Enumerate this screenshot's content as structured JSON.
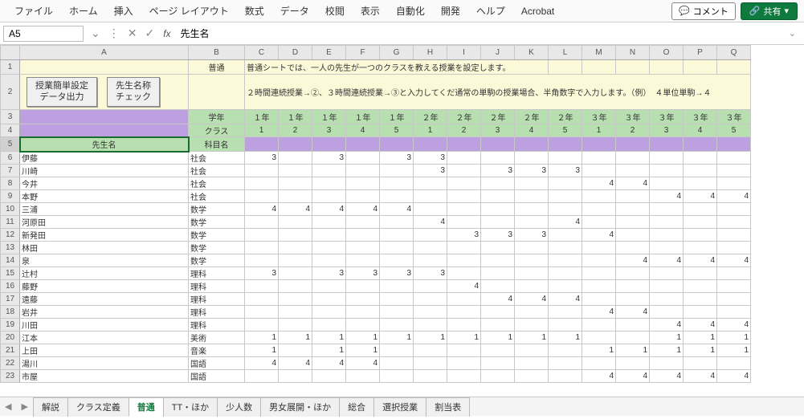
{
  "menu": {
    "file": "ファイル",
    "home": "ホーム",
    "insert": "挿入",
    "pageLayout": "ページ レイアウト",
    "formulas": "数式",
    "data": "データ",
    "review": "校閲",
    "view": "表示",
    "automate": "自動化",
    "developer": "開発",
    "help": "ヘルプ",
    "acrobat": "Acrobat",
    "comment": "コメント",
    "share": "共有"
  },
  "formulaBar": {
    "cellRef": "A5",
    "value": "先生名"
  },
  "columns": [
    "A",
    "B",
    "C",
    "D",
    "E",
    "F",
    "G",
    "H",
    "I",
    "J",
    "K",
    "L",
    "M",
    "N",
    "O",
    "P",
    "Q"
  ],
  "header": {
    "b1": "普通",
    "help1": "普通シートでは、一人の先生が一つのクラスを教える授業を設定します。",
    "help2": "２時間連続授業→②、３時間連続授業→③と入力してくだ通常の単駒の授業場合、半角数字で入力します。（例）　４単位単駒→４",
    "btn1a": "授業簡単設定",
    "btn1b": "データ出力",
    "btn2a": "先生名称",
    "btn2b": "チェック",
    "gradeLabel": "学年",
    "classLabel": "クラス",
    "teacherLabel": "先生名",
    "subjectLabel": "科目名",
    "grades": [
      "１年",
      "１年",
      "１年",
      "１年",
      "１年",
      "２年",
      "２年",
      "２年",
      "２年",
      "２年",
      "３年",
      "３年",
      "３年",
      "３年",
      "３年"
    ],
    "classes": [
      "1",
      "2",
      "3",
      "4",
      "5",
      "1",
      "2",
      "3",
      "4",
      "5",
      "1",
      "2",
      "3",
      "4",
      "5"
    ]
  },
  "rows": [
    {
      "n": 6,
      "name": "伊藤",
      "subj": "社会",
      "v": [
        "3",
        "",
        "3",
        "",
        "3",
        "3",
        "",
        "",
        "",
        "",
        "",
        "",
        "",
        "",
        ""
      ]
    },
    {
      "n": 7,
      "name": "川崎",
      "subj": "社会",
      "v": [
        "",
        "",
        "",
        "",
        "",
        "3",
        "",
        "3",
        "3",
        "3",
        "",
        "",
        "",
        "",
        ""
      ]
    },
    {
      "n": 8,
      "name": "今井",
      "subj": "社会",
      "v": [
        "",
        "",
        "",
        "",
        "",
        "",
        "",
        "",
        "",
        "",
        "4",
        "4",
        "",
        "",
        ""
      ]
    },
    {
      "n": 9,
      "name": "本野",
      "subj": "社会",
      "v": [
        "",
        "",
        "",
        "",
        "",
        "",
        "",
        "",
        "",
        "",
        "",
        "",
        "4",
        "4",
        "4"
      ]
    },
    {
      "n": 10,
      "name": "三浦",
      "subj": "数学",
      "v": [
        "4",
        "4",
        "4",
        "4",
        "4",
        "",
        "",
        "",
        "",
        "",
        "",
        "",
        "",
        "",
        ""
      ]
    },
    {
      "n": 11,
      "name": "河原田",
      "subj": "数学",
      "v": [
        "",
        "",
        "",
        "",
        "",
        "4",
        "",
        "",
        "",
        "4",
        "",
        "",
        "",
        "",
        ""
      ]
    },
    {
      "n": 12,
      "name": "新発田",
      "subj": "数学",
      "v": [
        "",
        "",
        "",
        "",
        "",
        "",
        "3",
        "3",
        "3",
        "",
        "4",
        "",
        "",
        "",
        ""
      ]
    },
    {
      "n": 13,
      "name": "林田",
      "subj": "数学",
      "v": [
        "",
        "",
        "",
        "",
        "",
        "",
        "",
        "",
        "",
        "",
        "",
        "",
        "",
        "",
        ""
      ]
    },
    {
      "n": 14,
      "name": "泉",
      "subj": "数学",
      "v": [
        "",
        "",
        "",
        "",
        "",
        "",
        "",
        "",
        "",
        "",
        "",
        "4",
        "4",
        "4",
        "4"
      ]
    },
    {
      "n": 15,
      "name": "辻村",
      "subj": "理科",
      "v": [
        "3",
        "",
        "3",
        "3",
        "3",
        "3",
        "",
        "",
        "",
        "",
        "",
        "",
        "",
        "",
        ""
      ]
    },
    {
      "n": 16,
      "name": "藤野",
      "subj": "理科",
      "v": [
        "",
        "",
        "",
        "",
        "",
        "",
        "4",
        "",
        "",
        "",
        "",
        "",
        "",
        "",
        ""
      ]
    },
    {
      "n": 17,
      "name": "遠藤",
      "subj": "理科",
      "v": [
        "",
        "",
        "",
        "",
        "",
        "",
        "",
        "4",
        "4",
        "4",
        "",
        "",
        "",
        "",
        ""
      ]
    },
    {
      "n": 18,
      "name": "岩井",
      "subj": "理科",
      "v": [
        "",
        "",
        "",
        "",
        "",
        "",
        "",
        "",
        "",
        "",
        "4",
        "4",
        "",
        "",
        ""
      ]
    },
    {
      "n": 19,
      "name": "川田",
      "subj": "理科",
      "v": [
        "",
        "",
        "",
        "",
        "",
        "",
        "",
        "",
        "",
        "",
        "",
        "",
        "4",
        "4",
        "4"
      ]
    },
    {
      "n": 20,
      "name": "江本",
      "subj": "美術",
      "v": [
        "1",
        "1",
        "1",
        "1",
        "1",
        "1",
        "1",
        "1",
        "1",
        "1",
        "",
        "",
        "1",
        "1",
        "1"
      ]
    },
    {
      "n": 21,
      "name": "上田",
      "subj": "音楽",
      "v": [
        "1",
        "",
        "1",
        "1",
        "",
        "",
        "",
        "",
        "",
        "",
        "1",
        "1",
        "1",
        "1",
        "1"
      ]
    },
    {
      "n": 22,
      "name": "湯川",
      "subj": "国語",
      "v": [
        "4",
        "4",
        "4",
        "4",
        "",
        "",
        "",
        "",
        "",
        "",
        "",
        "",
        "",
        "",
        ""
      ]
    },
    {
      "n": 23,
      "name": "市屋",
      "subj": "国語",
      "v": [
        "",
        "",
        "",
        "",
        "",
        "",
        "",
        "",
        "",
        "",
        "4",
        "4",
        "4",
        "4",
        "4"
      ]
    }
  ],
  "tabs": {
    "list": [
      "解説",
      "クラス定義",
      "普通",
      "TT・ほか",
      "少人数",
      "男女展開・ほか",
      "総合",
      "選択授業",
      "割当表"
    ],
    "active": "普通"
  }
}
